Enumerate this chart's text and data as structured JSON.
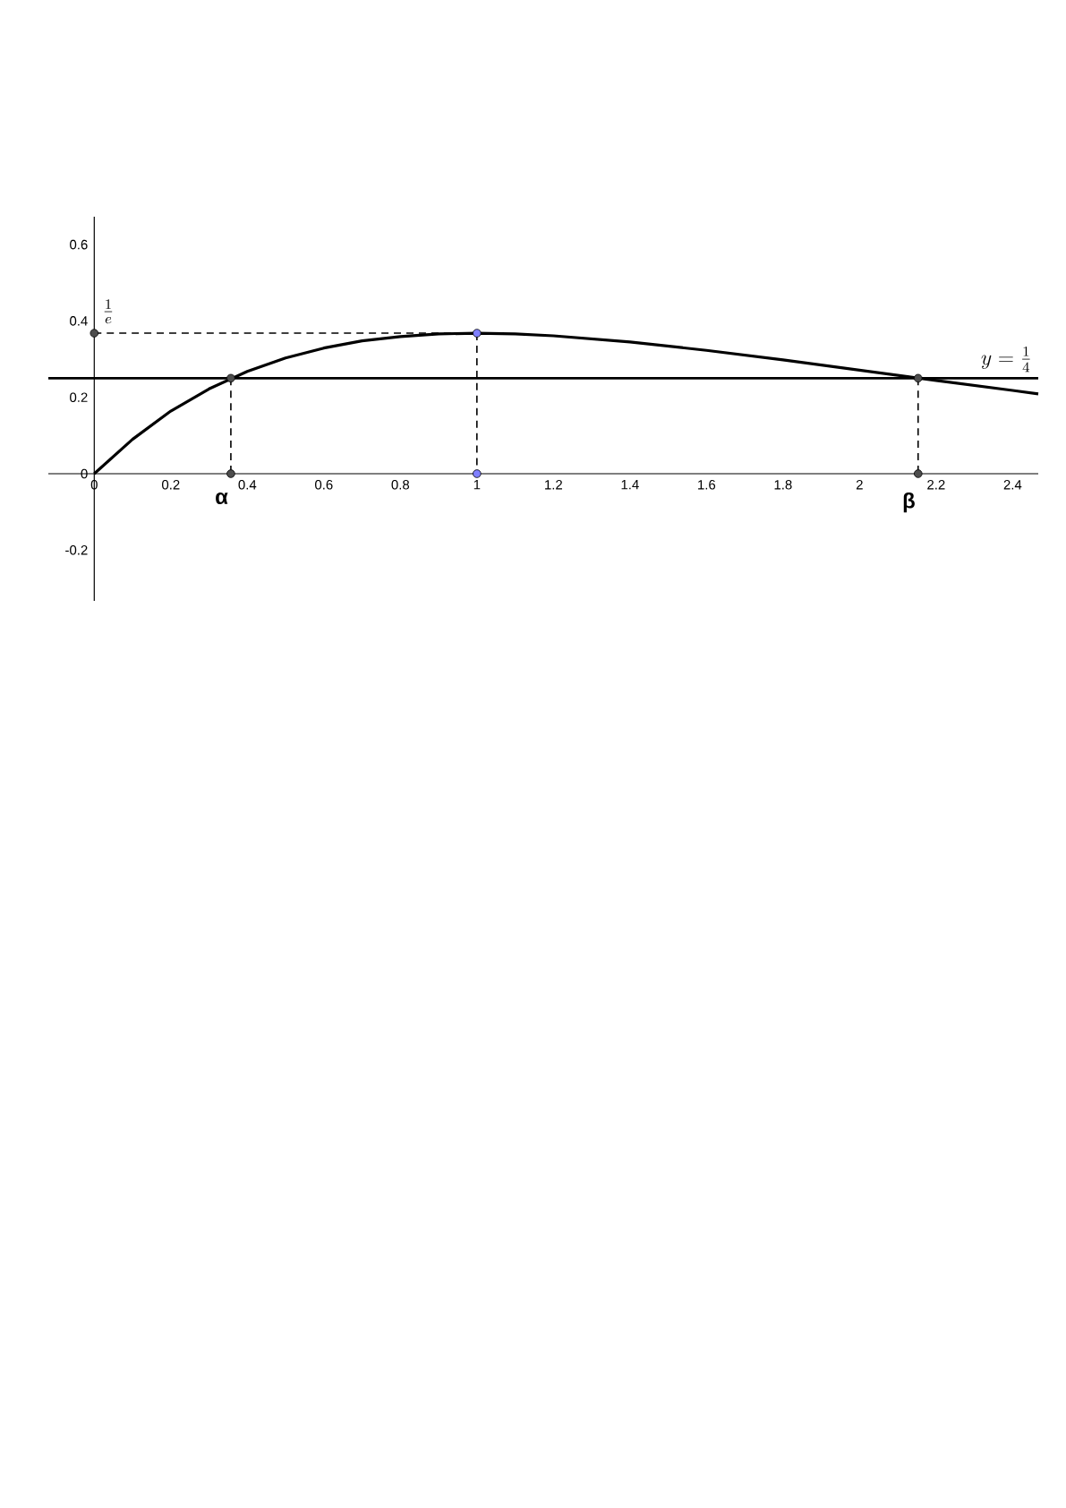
{
  "chart_data": {
    "type": "line",
    "xlim": [
      -0.12,
      2.467
    ],
    "ylim": [
      -0.333,
      0.673
    ],
    "xticks": [
      0,
      0.2,
      0.4,
      0.6,
      0.8,
      1,
      1.2,
      1.4,
      1.6,
      1.8,
      2,
      2.2,
      2.4
    ],
    "yticks": [
      -0.2,
      0,
      0.2,
      0.4,
      0.6
    ],
    "grid": false,
    "series": [
      {
        "x": [
          0,
          0.1,
          0.2,
          0.3,
          0.4,
          0.5,
          0.6,
          0.7,
          0.8,
          0.9,
          1,
          1.1,
          1.2,
          1.4,
          1.6,
          1.8,
          2,
          2.2,
          2.4,
          2.467
        ],
        "values": [
          0,
          0.09,
          0.164,
          0.222,
          0.268,
          0.303,
          0.329,
          0.348,
          0.359,
          0.366,
          0.368,
          0.366,
          0.361,
          0.345,
          0.323,
          0.298,
          0.271,
          0.244,
          0.218,
          0.209
        ],
        "color": "#000000",
        "line_style": "solid",
        "marker": "none"
      },
      {
        "x": [
          0,
          1
        ],
        "values": [
          0.368,
          0.368
        ],
        "color": "#000000",
        "line_style": "dashed",
        "marker": "none"
      },
      {
        "x": [
          0.357,
          0.357
        ],
        "values": [
          0.25,
          0
        ],
        "color": "#000000",
        "line_style": "dashed",
        "marker": "none"
      },
      {
        "x": [
          1,
          1
        ],
        "values": [
          0.368,
          0
        ],
        "color": "#000000",
        "line_style": "dashed",
        "marker": "none"
      },
      {
        "x": [
          2.153,
          2.153
        ],
        "values": [
          0.25,
          0
        ],
        "color": "#000000",
        "line_style": "dashed",
        "marker": "none"
      },
      {
        "type": "scatter",
        "x": [
          0,
          0.357,
          0.357,
          2.153,
          2.153
        ],
        "values": [
          0.368,
          0.25,
          0,
          0.25,
          0
        ],
        "color": "#4d4d4d",
        "marker": "circle"
      },
      {
        "type": "scatter",
        "x": [
          1,
          1
        ],
        "values": [
          0.368,
          0
        ],
        "color": "#8080ff",
        "marker": "circle"
      }
    ],
    "ref_lines": [
      {
        "axis": "y",
        "value": 0.25,
        "label": "y=\\frac{1}{4}",
        "color": "#000000"
      }
    ],
    "annotations": [
      {
        "text": "\\frac{1}{e}",
        "x": 0,
        "y": 0.368
      },
      {
        "text": "α",
        "x": 0.357,
        "y": 0
      },
      {
        "text": "β",
        "x": 2.153,
        "y": 0
      }
    ]
  }
}
